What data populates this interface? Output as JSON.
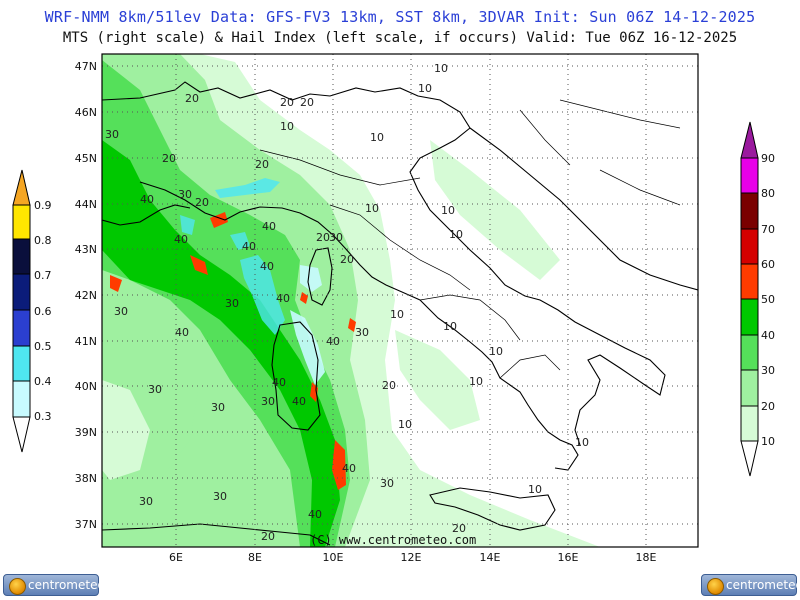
{
  "header": {
    "line1": "WRF-NMM 8km/51lev  Data: GFS-FV3 13km, SST 8km, 3DVAR   Init: Sun 06Z 14-12-2025",
    "line2": "MTS (right scale) & Hail Index (left scale, if occurs) Valid: Tue 06Z 16-12-2025"
  },
  "map": {
    "lat_labels": [
      "47N",
      "46N",
      "45N",
      "44N",
      "43N",
      "42N",
      "41N",
      "40N",
      "39N",
      "38N",
      "37N"
    ],
    "lon_labels": [
      "6E",
      "8E",
      "10E",
      "12E",
      "14E",
      "16E",
      "18E"
    ],
    "copyright": "(C) www.centrometeo.com"
  },
  "hail_scale": {
    "labels": [
      "0.9",
      "0.8",
      "0.7",
      "0.6",
      "0.5",
      "0.4",
      "0.3"
    ],
    "colors": [
      "#f5a623",
      "#ffe600",
      "#0a0f3c",
      "#0b1c7a",
      "#2b3fd0",
      "#4fe6f0",
      "#c8fbff"
    ]
  },
  "mts_scale": {
    "labels": [
      "90",
      "80",
      "70",
      "60",
      "50",
      "40",
      "30",
      "20",
      "10"
    ],
    "colors": [
      "#9a1a9e",
      "#e800e8",
      "#7a0000",
      "#d40000",
      "#ff3b00",
      "#00c800",
      "#55e05a",
      "#9ff0a0",
      "#d6fbd6",
      "#ffffff"
    ]
  },
  "contour_labels": [
    "10",
    "20",
    "30",
    "40"
  ],
  "branding": {
    "logo_left": "centrometeo",
    "logo_right": "centrometeo"
  }
}
